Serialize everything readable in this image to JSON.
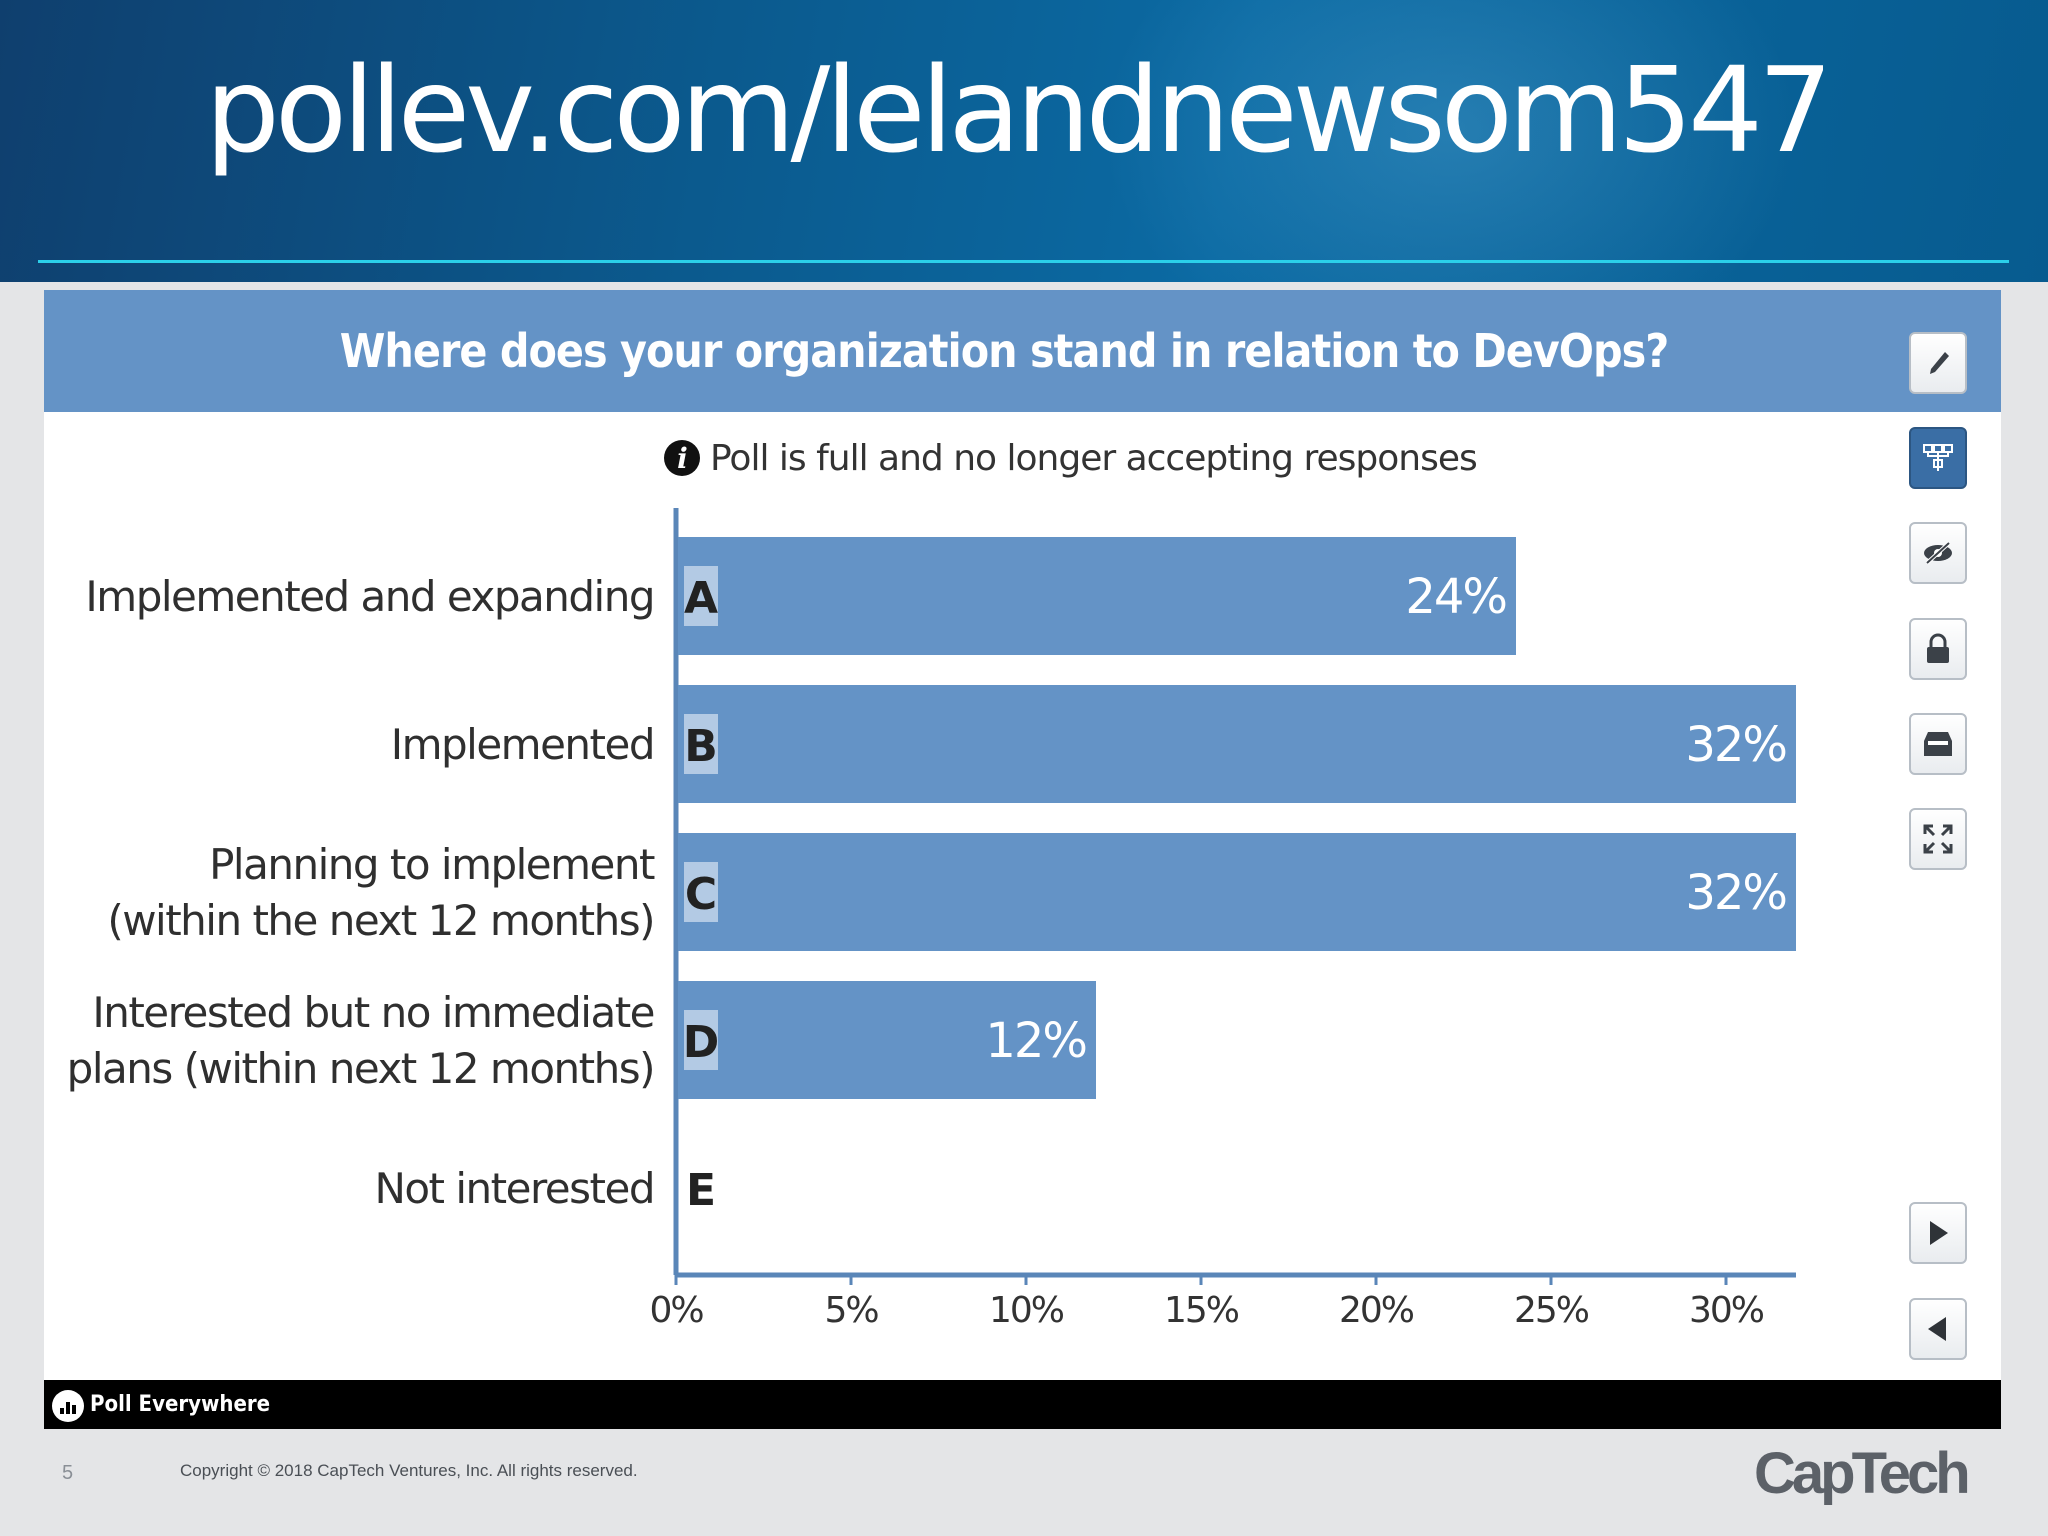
{
  "slide": {
    "title": "pollev.com/lelandnewsom547",
    "number": "5",
    "copyright": "Copyright © 2018 CapTech Ventures, Inc. All rights reserved.",
    "company_logo": "CapTech"
  },
  "poll": {
    "question": "Where does your organization stand in relation to DevOps?",
    "status": "Poll is full and no longer accepting responses",
    "branding": "Poll Everywhere",
    "colors": {
      "bar": "#6493c6",
      "header": "#6493c6",
      "axis": "#5a86b8",
      "active_button": "#3a6ea5"
    }
  },
  "toolbar": [
    {
      "name": "pen-icon",
      "active": false
    },
    {
      "name": "response-settings-icon",
      "active": true
    },
    {
      "name": "hide-responses-icon",
      "active": false
    },
    {
      "name": "lock-icon",
      "active": false
    },
    {
      "name": "archive-icon",
      "active": false
    },
    {
      "name": "fullscreen-icon",
      "active": false
    },
    {
      "name": "next-icon",
      "active": false
    },
    {
      "name": "previous-icon",
      "active": false
    }
  ],
  "chart_data": {
    "type": "bar",
    "orientation": "horizontal",
    "title": "Where does your organization stand in relation to DevOps?",
    "categories": [
      {
        "letter": "A",
        "lines": [
          "Implemented and expanding"
        ],
        "value": 24,
        "label": "24%"
      },
      {
        "letter": "B",
        "lines": [
          "Implemented"
        ],
        "value": 32,
        "label": "32%"
      },
      {
        "letter": "C",
        "lines": [
          "Planning to implement",
          "(within the next 12 months)"
        ],
        "value": 32,
        "label": "32%"
      },
      {
        "letter": "D",
        "lines": [
          "Interested but no immediate",
          "plans (within next 12 months)"
        ],
        "value": 12,
        "label": "12%"
      },
      {
        "letter": "E",
        "lines": [
          "Not interested"
        ],
        "value": 0,
        "label": ""
      }
    ],
    "xticks": [
      {
        "value": 0,
        "label": "0%"
      },
      {
        "value": 5,
        "label": "5%"
      },
      {
        "value": 10,
        "label": "10%"
      },
      {
        "value": 15,
        "label": "15%"
      },
      {
        "value": 20,
        "label": "20%"
      },
      {
        "value": 25,
        "label": "25%"
      },
      {
        "value": 30,
        "label": "30%"
      }
    ],
    "xlim": [
      0,
      32
    ],
    "grid": false,
    "legend": "none"
  }
}
